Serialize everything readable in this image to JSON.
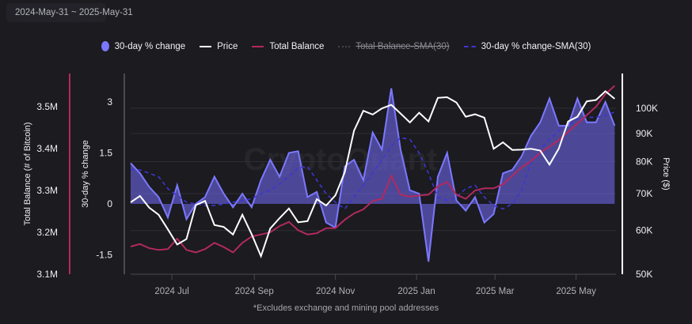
{
  "date_range": {
    "label": "2024-May-31 ~ 2025-May-31",
    "icon": "calendar-icon"
  },
  "legend": [
    {
      "label": "30-day % change",
      "color": "#7b78ff",
      "style": "dot",
      "active": true
    },
    {
      "label": "Price",
      "color": "#ffffff",
      "style": "line",
      "active": true
    },
    {
      "label": "Total Balance",
      "color": "#b2295f",
      "style": "line",
      "active": true
    },
    {
      "label": "Total Balance-SMA(30)",
      "color": "#55555c",
      "style": "dotted",
      "active": false
    },
    {
      "label": "30-day % change-SMA(30)",
      "color": "#3f35d0",
      "style": "dashed",
      "active": true
    }
  ],
  "watermark": "CryptoQuant",
  "footnote": "*Excludes exchange and mining pool addresses",
  "chart_data": {
    "type": "line",
    "x": [
      "2024-05-31",
      "2024-06-07",
      "2024-06-14",
      "2024-06-21",
      "2024-06-28",
      "2024-07-05",
      "2024-07-12",
      "2024-07-19",
      "2024-07-26",
      "2024-08-02",
      "2024-08-09",
      "2024-08-16",
      "2024-08-23",
      "2024-08-30",
      "2024-09-06",
      "2024-09-13",
      "2024-09-20",
      "2024-09-27",
      "2024-10-04",
      "2024-10-11",
      "2024-10-18",
      "2024-10-25",
      "2024-11-01",
      "2024-11-08",
      "2024-11-15",
      "2024-11-22",
      "2024-11-29",
      "2024-12-06",
      "2024-12-13",
      "2024-12-20",
      "2024-12-27",
      "2025-01-03",
      "2025-01-10",
      "2025-01-17",
      "2025-01-24",
      "2025-01-31",
      "2025-02-07",
      "2025-02-14",
      "2025-02-21",
      "2025-02-28",
      "2025-03-07",
      "2025-03-14",
      "2025-03-21",
      "2025-03-28",
      "2025-04-04",
      "2025-04-11",
      "2025-04-18",
      "2025-04-25",
      "2025-05-02",
      "2025-05-09",
      "2025-05-16",
      "2025-05-23",
      "2025-05-30"
    ],
    "xlim": [
      "2024-05-31",
      "2025-05-31"
    ],
    "x_ticks": [
      "2024 Jul",
      "2024 Sep",
      "2024 Nov",
      "2025 Jan",
      "2025 Mar",
      "2025 May"
    ],
    "x_tick_dates": [
      "2024-07-01",
      "2024-09-01",
      "2024-11-01",
      "2025-01-01",
      "2025-03-01",
      "2025-05-01"
    ],
    "series": [
      {
        "name": "30-day % change",
        "axis": "30-day % change",
        "type": "area",
        "color": "#7b78ff",
        "values": [
          1.2,
          0.9,
          0.5,
          0.2,
          -0.4,
          0.55,
          -0.45,
          0.0,
          0.2,
          0.8,
          0.3,
          -0.1,
          0.3,
          -0.1,
          0.7,
          1.3,
          0.8,
          1.5,
          1.55,
          0.2,
          0.35,
          -0.55,
          -0.7,
          1.1,
          1.3,
          0.7,
          2.1,
          1.6,
          3.4,
          1.6,
          0.4,
          0.3,
          -1.7,
          0.8,
          1.5,
          0.1,
          -0.2,
          0.2,
          -0.55,
          -0.3,
          0.9,
          1.0,
          1.4,
          2.0,
          2.4,
          3.1,
          2.3,
          2.3,
          3.1,
          2.4,
          2.4,
          3.0,
          2.3
        ]
      },
      {
        "name": "Price",
        "axis": "Price ($)",
        "type": "line",
        "color": "#ffffff",
        "values": [
          67500,
          69300,
          66000,
          64100,
          60300,
          56600,
          57900,
          66700,
          67900,
          61400,
          60900,
          59000,
          64100,
          59100,
          53900,
          60500,
          63200,
          65800,
          62100,
          62400,
          68400,
          66600,
          69500,
          76500,
          91000,
          98900,
          97400,
          99900,
          101400,
          97800,
          94200,
          98100,
          94600,
          104400,
          104700,
          102400,
          96500,
          97500,
          96100,
          84400,
          86700,
          84000,
          84100,
          84400,
          83800,
          79000,
          84500,
          94600,
          96500,
          102900,
          103500,
          107300,
          104000
        ]
      },
      {
        "name": "Total Balance",
        "axis": "Total Balance (# of Bitcoin)",
        "type": "line",
        "color": "#b2295f",
        "values": [
          3.166,
          3.172,
          3.162,
          3.158,
          3.16,
          3.185,
          3.158,
          3.152,
          3.16,
          3.175,
          3.165,
          3.152,
          3.175,
          3.19,
          3.195,
          3.2,
          3.215,
          3.225,
          3.205,
          3.195,
          3.198,
          3.21,
          3.21,
          3.23,
          3.245,
          3.255,
          3.275,
          3.28,
          3.335,
          3.29,
          3.285,
          3.288,
          3.29,
          3.31,
          3.32,
          3.29,
          3.28,
          3.3,
          3.305,
          3.305,
          3.315,
          3.335,
          3.355,
          3.37,
          3.39,
          3.405,
          3.42,
          3.44,
          3.46,
          3.48,
          3.5,
          3.53,
          3.55
        ]
      },
      {
        "name": "30-day % change-SMA(30)",
        "axis": "30-day % change",
        "type": "line",
        "style": "dashed",
        "color": "#3f35d0",
        "values": [
          1.0,
          1.0,
          0.9,
          0.8,
          0.45,
          0.25,
          0.05,
          0.0,
          -0.05,
          -0.05,
          0.0,
          0.05,
          0.1,
          0.15,
          0.3,
          0.4,
          0.6,
          0.8,
          1.05,
          1.1,
          0.7,
          0.3,
          0.05,
          -0.15,
          0.2,
          0.55,
          0.9,
          1.3,
          1.7,
          1.95,
          1.9,
          1.5,
          0.9,
          0.2,
          0.1,
          0.2,
          0.45,
          0.55,
          0.2,
          -0.05,
          -0.15,
          0.0,
          0.4,
          1.2,
          1.6,
          1.9,
          2.15,
          2.3,
          2.5,
          2.55,
          2.55,
          2.6,
          2.7
        ]
      }
    ],
    "axes": {
      "balance": {
        "title": "Total Balance (# of Bitcoin)",
        "ticks": [
          "3.5M",
          "3.4M",
          "3.3M",
          "3.2M",
          "3.1M"
        ],
        "tick_values": [
          3.5,
          3.4,
          3.3,
          3.2,
          3.1
        ],
        "range": [
          3.1,
          3.55
        ],
        "unit": "M BTC",
        "color": "#b2295f"
      },
      "change": {
        "title": "30-day % change",
        "ticks": [
          "3",
          "1.5",
          "0",
          "-1.5"
        ],
        "tick_values": [
          3,
          1.5,
          0,
          -1.5
        ]
      },
      "price": {
        "title": "Price ($)",
        "scale": "log",
        "ticks": [
          "100K",
          "90K",
          "80K",
          "70K",
          "60K",
          "50K"
        ],
        "tick_values": [
          100000,
          90000,
          80000,
          70000,
          60000,
          50000
        ],
        "range": [
          50000,
          110000
        ]
      }
    },
    "grid": true,
    "legend_position": "top"
  }
}
